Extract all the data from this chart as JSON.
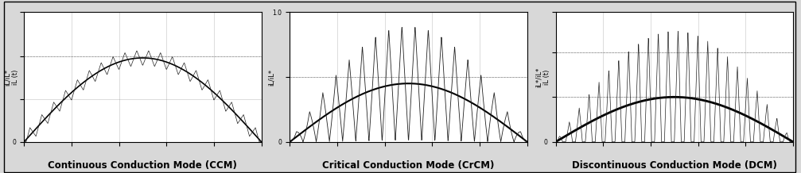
{
  "panels": [
    {
      "title": "Continuous Conduction Mode (CCM)",
      "ylabel": "iL/iL*\niL (t)",
      "mode": "CCM",
      "n_ripples": 20,
      "sine_amp": 0.55,
      "ripple_amp": 0.1,
      "ylim": [
        0,
        0.85
      ],
      "ytick_vals": [
        0.0,
        0.28,
        0.56,
        0.85
      ],
      "ytick_labels": [
        "0",
        "",
        "",
        ""
      ],
      "hlines": [
        0.56
      ]
    },
    {
      "title": "Critical Conduction Mode (CrCM)",
      "ylabel": "iL/iL*",
      "mode": "CrCM",
      "n_ripples": 18,
      "sine_amp": 0.45,
      "ripple_amp": 1.0,
      "ylim": [
        0,
        1.0
      ],
      "ytick_vals": [
        0.0,
        0.5,
        1.0
      ],
      "ytick_labels": [
        "0",
        "",
        "1.0"
      ],
      "hlines": [
        0.5
      ]
    },
    {
      "title": "Discontinuous Conduction Mode (DCM)",
      "ylabel": "iL*/iL*\niL (t)",
      "mode": "DCM",
      "n_ripples": 24,
      "sine_amp": 0.38,
      "ripple_amp": 2.5,
      "ylim": [
        0,
        1.1
      ],
      "ytick_vals": [
        0.0,
        0.38,
        0.76,
        1.1
      ],
      "ytick_labels": [
        "0",
        "",
        "",
        ""
      ],
      "hlines": [
        0.38,
        0.76
      ]
    }
  ],
  "outer_bg": "#d8d8d8",
  "panel_bg": "#ffffff",
  "grid_color": "#888888",
  "title_fontsize": 8.5,
  "ylabel_fontsize": 6,
  "tick_fontsize": 5.5
}
